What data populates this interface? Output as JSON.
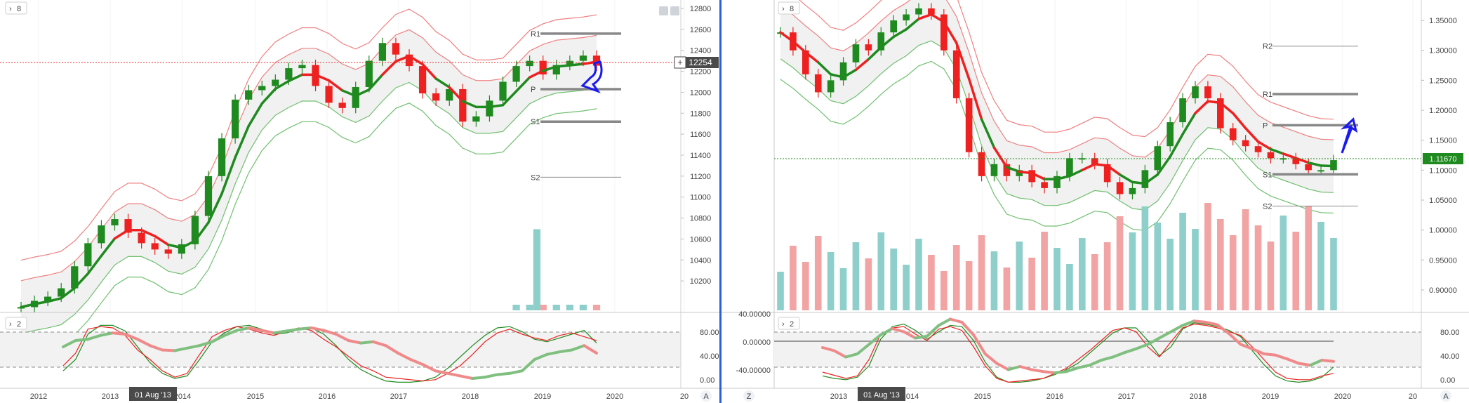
{
  "colors": {
    "up": "#1f8a1f",
    "down": "#ee2020",
    "vol_up": "#8ecfcb",
    "vol_down": "#f2a3a3",
    "band_up": "#f08080",
    "band_low": "#70c070",
    "arrow": "#1a1aee",
    "pivot": "#888888",
    "price_label_left": "#4a4a4a",
    "price_label_right": "#1f8a1f",
    "divider": "#2b5fd6"
  },
  "chart_data": [
    {
      "type": "candlestick",
      "panel": "left",
      "indicator_badge": "8",
      "indicator_icons": [
        "hide-icon",
        "settings-icon"
      ],
      "yaxis_ticks": [
        12800,
        12600,
        12400,
        12200,
        12000,
        11800,
        11600,
        11400,
        11200,
        11000,
        10800,
        10600,
        10400,
        10200
      ],
      "ylim": [
        10000,
        12800
      ],
      "xaxis_ticks": [
        "2012",
        "2013",
        "2014",
        "2015",
        "2016",
        "2017",
        "2018",
        "2019",
        "2020",
        "20"
      ],
      "crosshair_date": "01 Aug '13",
      "last_price": "12254",
      "pivots": [
        {
          "label": "R1",
          "value": 12560
        },
        {
          "label": "P",
          "value": 12030
        },
        {
          "label": "S1",
          "value": 11720
        },
        {
          "label": "S2",
          "value": 11190
        }
      ],
      "arrow_direction": "down",
      "close_series": [
        9950,
        10010,
        10050,
        10130,
        10340,
        10560,
        10730,
        10790,
        10660,
        10560,
        10500,
        10460,
        10550,
        10820,
        11200,
        11560,
        11930,
        12020,
        12060,
        12120,
        12230,
        12260,
        12060,
        11900,
        11850,
        12050,
        12300,
        12470,
        12360,
        12250,
        11990,
        11920,
        12030,
        11720,
        11770,
        11920,
        12100,
        12250,
        12300,
        12170,
        12260,
        12300,
        12350,
        12254
      ],
      "volume_series": [
        0,
        0,
        0,
        0,
        0,
        0,
        0,
        0,
        0,
        0,
        0,
        0,
        0,
        0,
        0,
        0,
        0,
        0,
        0,
        0,
        0,
        0,
        0,
        0,
        0,
        0,
        0,
        0,
        0,
        0,
        0,
        0,
        0,
        0,
        0,
        0,
        0,
        1,
        1,
        1,
        1,
        1,
        1,
        1
      ],
      "volume_spike": 3.8
    },
    {
      "type": "candlestick",
      "panel": "right",
      "indicator_badge": "8",
      "yaxis_ticks": [
        "1.35000",
        "1.30000",
        "1.25000",
        "1.20000",
        "1.15000",
        "1.10000",
        "1.05000",
        "1.00000",
        "0.95000",
        "0.90000"
      ],
      "ylim": [
        0.88,
        1.37
      ],
      "xaxis_ticks": [
        "2013",
        "2014",
        "2015",
        "2016",
        "2017",
        "2018",
        "2019",
        "2020",
        "20"
      ],
      "crosshair_date": "01 Aug '13",
      "axis_letter_left": "Z",
      "axis_letter_right": "A",
      "last_price": "1.11670",
      "pivots": [
        {
          "label": "R2",
          "value": 1.307
        },
        {
          "label": "R1",
          "value": 1.227
        },
        {
          "label": "P",
          "value": 1.175
        },
        {
          "label": "S1",
          "value": 1.093
        },
        {
          "label": "S2",
          "value": 1.04
        }
      ],
      "arrow_direction": "up",
      "close_series": [
        1.33,
        1.3,
        1.26,
        1.23,
        1.25,
        1.28,
        1.31,
        1.3,
        1.33,
        1.35,
        1.36,
        1.37,
        1.36,
        1.3,
        1.22,
        1.13,
        1.09,
        1.11,
        1.09,
        1.1,
        1.08,
        1.07,
        1.09,
        1.12,
        1.12,
        1.11,
        1.08,
        1.06,
        1.07,
        1.1,
        1.14,
        1.18,
        1.22,
        1.24,
        1.22,
        1.17,
        1.15,
        1.14,
        1.13,
        1.12,
        1.12,
        1.11,
        1.1,
        1.1,
        1.1167
      ]
    }
  ],
  "sub_panels": {
    "left": {
      "badge": "2",
      "ticks": [
        "80.00",
        "40.00",
        "0.00"
      ],
      "axis_letter": "A",
      "thick_series": [
        60,
        70,
        72,
        78,
        82,
        80,
        72,
        62,
        55,
        54,
        58,
        62,
        68,
        78,
        86,
        90,
        86,
        82,
        85,
        88,
        90,
        86,
        80,
        70,
        66,
        68,
        62,
        50,
        40,
        32,
        22,
        18,
        14,
        10,
        12,
        16,
        18,
        22,
        40,
        48,
        52,
        55,
        62,
        50
      ],
      "red_series": [
        30,
        50,
        88,
        92,
        90,
        78,
        55,
        40,
        22,
        12,
        18,
        48,
        76,
        86,
        92,
        88,
        82,
        78,
        85,
        90,
        86,
        72,
        60,
        45,
        30,
        22,
        12,
        10,
        8,
        6,
        8,
        18,
        30,
        48,
        68,
        82,
        88,
        80,
        74,
        70,
        78,
        82,
        76,
        70
      ],
      "green_series": [
        22,
        40,
        80,
        94,
        94,
        85,
        60,
        35,
        18,
        10,
        14,
        40,
        68,
        82,
        92,
        94,
        88,
        80,
        82,
        88,
        90,
        80,
        62,
        40,
        24,
        14,
        6,
        4,
        4,
        6,
        12,
        26,
        44,
        62,
        78,
        90,
        92,
        84,
        72,
        68,
        74,
        80,
        86,
        66
      ]
    },
    "right": {
      "badge": "2",
      "left_ticks": [
        "40.00000",
        "0.00000",
        "-40.00000"
      ],
      "right_ticks": [
        "80.00",
        "40.00",
        "0.00"
      ],
      "thick_series": [
        -10,
        -15,
        -25,
        -20,
        -5,
        10,
        20,
        15,
        5,
        8,
        25,
        35,
        30,
        10,
        -20,
        -35,
        -45,
        -40,
        -45,
        -48,
        -50,
        -48,
        -42,
        -38,
        -30,
        -25,
        -18,
        -12,
        -5,
        5,
        15,
        25,
        32,
        30,
        26,
        12,
        -5,
        -12,
        -20,
        -22,
        -28,
        -35,
        -38,
        -30,
        -32
      ],
      "red_series": [
        20,
        15,
        10,
        14,
        40,
        80,
        90,
        92,
        80,
        70,
        88,
        92,
        86,
        60,
        30,
        10,
        4,
        6,
        8,
        10,
        18,
        26,
        40,
        54,
        70,
        86,
        90,
        84,
        60,
        44,
        68,
        90,
        96,
        94,
        90,
        84,
        78,
        60,
        40,
        20,
        10,
        8,
        8,
        14,
        18
      ],
      "green_series": [
        14,
        10,
        8,
        12,
        30,
        72,
        92,
        96,
        86,
        72,
        84,
        94,
        92,
        70,
        36,
        12,
        4,
        4,
        6,
        10,
        16,
        24,
        34,
        50,
        66,
        82,
        90,
        90,
        70,
        46,
        60,
        88,
        98,
        96,
        92,
        86,
        76,
        54,
        32,
        14,
        6,
        4,
        6,
        12,
        28
      ]
    }
  }
}
